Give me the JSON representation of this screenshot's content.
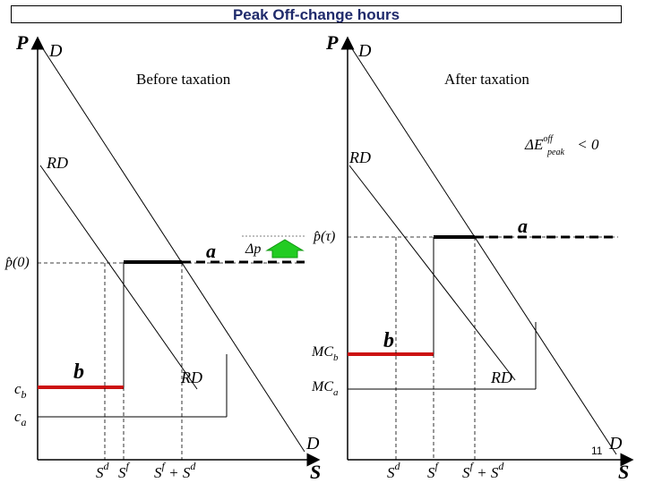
{
  "title": "Peak Off-change hours",
  "page_number": "11",
  "colors": {
    "title": "#1f2a6b",
    "red_segment": "#cc1111",
    "arrow_fill": "#22cc22",
    "arrow_stroke": "#119911"
  },
  "left_panel": {
    "heading": "Before taxation",
    "axis_y": "P",
    "axis_x": "S",
    "demand_top": "D",
    "demand_bottom": "D",
    "rd_top": "RD",
    "rd_bottom": "RD",
    "alpha": "a",
    "b": "b",
    "price_label": "p̂(0)",
    "delta_p": "Δp",
    "cb": "c",
    "cb_sub": "b",
    "ca": "c",
    "ca_sub": "a",
    "tick_sd": "S",
    "tick_sd_sup": "d",
    "tick_sf": "S",
    "tick_sf_sup": "f",
    "tick_sum_a": "S",
    "tick_sum_sup_a": "f",
    "tick_sum_plus": " + S",
    "tick_sum_sup_b": "d"
  },
  "right_panel": {
    "heading": "After taxation",
    "axis_y": "P",
    "axis_x": "S",
    "demand_top": "D",
    "demand_bottom": "D",
    "rd_top": "RD",
    "rd_bottom": "RD",
    "alpha": "a",
    "b": "b",
    "price_label": "p̂(τ)",
    "mcb": "MC",
    "mcb_sub": "b",
    "mca": "MC",
    "mca_sub": "a",
    "delta_e": "ΔE",
    "delta_e_sup": "off",
    "delta_e_sub": "peak",
    "delta_e_rel": " < 0",
    "tick_sd": "S",
    "tick_sd_sup": "d",
    "tick_sf": "S",
    "tick_sf_sup": "f",
    "tick_sum_a": "S",
    "tick_sum_sup_a": "f",
    "tick_sum_plus": " + S",
    "tick_sum_sup_b": "d"
  }
}
